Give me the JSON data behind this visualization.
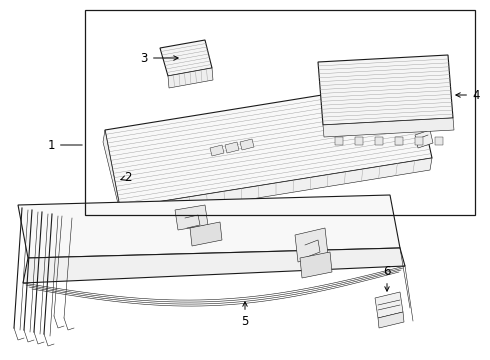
{
  "background_color": "#ffffff",
  "line_color": "#1a1a1a",
  "fig_width": 4.9,
  "fig_height": 3.6,
  "dpi": 100,
  "font_size": 8.5,
  "lw_main": 0.8,
  "lw_thin": 0.4,
  "lw_rib": 0.3,
  "gray_rib": "#999999",
  "gray_med": "#666666"
}
